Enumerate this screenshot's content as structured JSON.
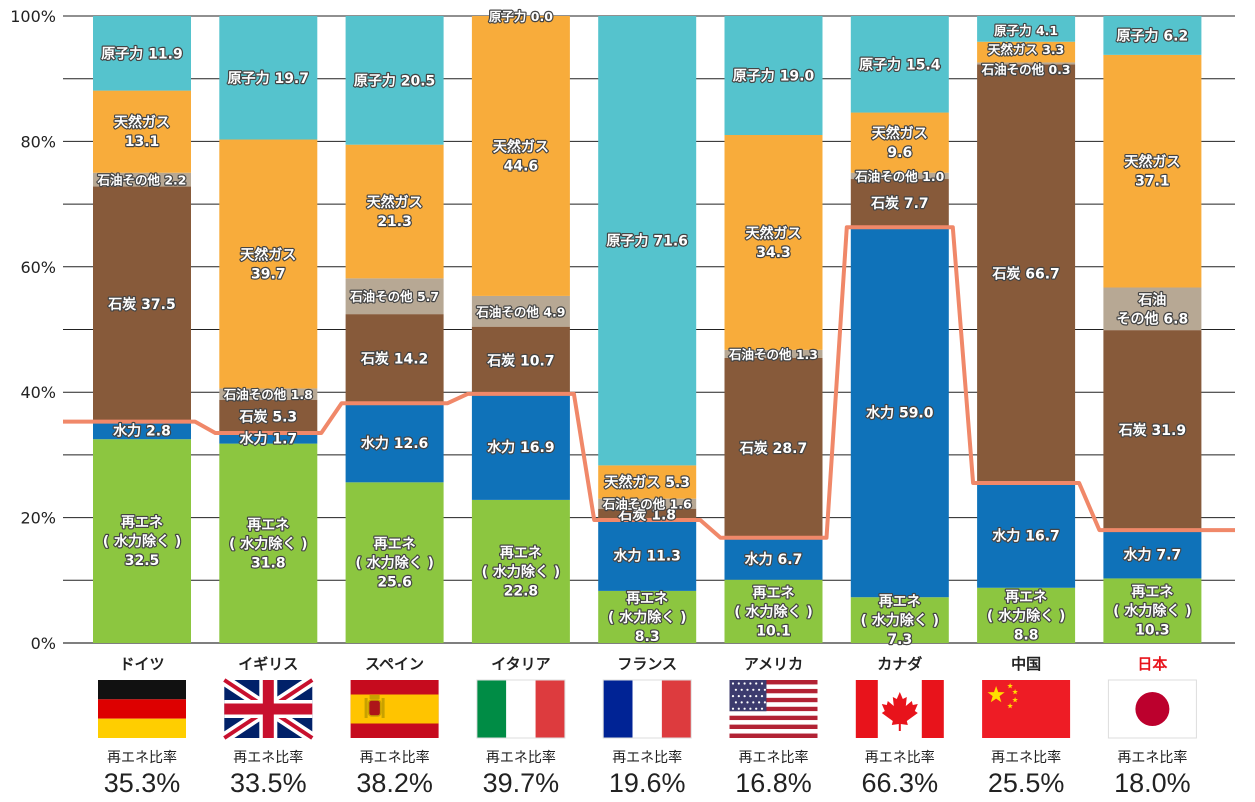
{
  "chart_data": {
    "type": "bar",
    "stacked": true,
    "ylim": [
      0,
      100
    ],
    "yticks": [
      "0%",
      "20%",
      "40%",
      "60%",
      "80%",
      "100%"
    ],
    "grid": true,
    "rate_caption": "再エネ比率",
    "highlight_color": "#e8131b",
    "series_colors": {
      "renew": "#8cc640",
      "hydro": "#0f72b9",
      "coal": "#875a3a",
      "oil": "#b7a894",
      "gas": "#f8ac3b",
      "nuclear": "#55c3cd",
      "line": "#f08869"
    },
    "countries": [
      {
        "name": "ドイツ",
        "flag": "germany-flag",
        "rate": "35.3%",
        "highlight": false,
        "segments": [
          {
            "key": "renew",
            "value": 32.5,
            "lines": [
              "再エネ",
              "( 水力除く )",
              "32.5"
            ]
          },
          {
            "key": "hydro",
            "value": 2.8,
            "lines": [
              "水力 2.8"
            ]
          },
          {
            "key": "coal",
            "value": 37.5,
            "lines": [
              "石炭 37.5"
            ]
          },
          {
            "key": "oil",
            "value": 2.2,
            "lines": [
              "石油その他 2.2"
            ],
            "small": true
          },
          {
            "key": "gas",
            "value": 13.1,
            "lines": [
              "天然ガス",
              "13.1"
            ]
          },
          {
            "key": "nuclear",
            "value": 11.9,
            "lines": [
              "原子力 11.9"
            ]
          }
        ]
      },
      {
        "name": "イギリス",
        "flag": "uk-flag",
        "rate": "33.5%",
        "highlight": false,
        "segments": [
          {
            "key": "renew",
            "value": 31.8,
            "lines": [
              "再エネ",
              "( 水力除く )",
              "31.8"
            ]
          },
          {
            "key": "hydro",
            "value": 1.7,
            "lines": [
              "水力 1.7"
            ]
          },
          {
            "key": "coal",
            "value": 5.3,
            "lines": [
              "石炭 5.3"
            ]
          },
          {
            "key": "oil",
            "value": 1.8,
            "lines": [
              "石油その他 1.8"
            ],
            "small": true
          },
          {
            "key": "gas",
            "value": 39.7,
            "lines": [
              "天然ガス",
              "39.7"
            ]
          },
          {
            "key": "nuclear",
            "value": 19.7,
            "lines": [
              "原子力 19.7"
            ]
          }
        ]
      },
      {
        "name": "スペイン",
        "flag": "spain-flag",
        "rate": "38.2%",
        "highlight": false,
        "segments": [
          {
            "key": "renew",
            "value": 25.6,
            "lines": [
              "再エネ",
              "( 水力除く )",
              "25.6"
            ]
          },
          {
            "key": "hydro",
            "value": 12.6,
            "lines": [
              "水力 12.6"
            ]
          },
          {
            "key": "coal",
            "value": 14.2,
            "lines": [
              "石炭 14.2"
            ]
          },
          {
            "key": "oil",
            "value": 5.7,
            "lines": [
              "石油その他 5.7"
            ],
            "small": true
          },
          {
            "key": "gas",
            "value": 21.3,
            "lines": [
              "天然ガス",
              "21.3"
            ]
          },
          {
            "key": "nuclear",
            "value": 20.5,
            "lines": [
              "原子力 20.5"
            ]
          }
        ]
      },
      {
        "name": "イタリア",
        "flag": "italy-flag",
        "rate": "39.7%",
        "highlight": false,
        "segments": [
          {
            "key": "renew",
            "value": 22.8,
            "lines": [
              "再エネ",
              "( 水力除く )",
              "22.8"
            ]
          },
          {
            "key": "hydro",
            "value": 16.9,
            "lines": [
              "水力 16.9"
            ]
          },
          {
            "key": "coal",
            "value": 10.7,
            "lines": [
              "石炭 10.7"
            ]
          },
          {
            "key": "oil",
            "value": 4.9,
            "lines": [
              "石油その他 4.9"
            ],
            "small": true
          },
          {
            "key": "gas",
            "value": 44.6,
            "lines": [
              "天然ガス",
              "44.6"
            ]
          },
          {
            "key": "nuclear",
            "value": 0.0,
            "lines": [
              "原子力 0.0"
            ],
            "small": true,
            "above": true
          }
        ]
      },
      {
        "name": "フランス",
        "flag": "france-flag",
        "rate": "19.6%",
        "highlight": false,
        "segments": [
          {
            "key": "renew",
            "value": 8.3,
            "lines": [
              "再エネ",
              "( 水力除く )",
              "8.3"
            ]
          },
          {
            "key": "hydro",
            "value": 11.3,
            "lines": [
              "水力 11.3"
            ]
          },
          {
            "key": "coal",
            "value": 1.8,
            "lines": [
              "石炭 1.8"
            ]
          },
          {
            "key": "oil",
            "value": 1.6,
            "lines": [
              "石油その他 1.6"
            ],
            "small": true
          },
          {
            "key": "gas",
            "value": 5.3,
            "lines": [
              "天然ガス 5.3"
            ]
          },
          {
            "key": "nuclear",
            "value": 71.6,
            "lines": [
              "原子力 71.6"
            ]
          }
        ]
      },
      {
        "name": "アメリカ",
        "flag": "usa-flag",
        "rate": "16.8%",
        "highlight": false,
        "segments": [
          {
            "key": "renew",
            "value": 10.1,
            "lines": [
              "再エネ",
              "( 水力除く )",
              "10.1"
            ]
          },
          {
            "key": "hydro",
            "value": 6.7,
            "lines": [
              "水力 6.7"
            ]
          },
          {
            "key": "coal",
            "value": 28.7,
            "lines": [
              "石炭 28.7"
            ]
          },
          {
            "key": "oil",
            "value": 1.3,
            "lines": [
              "石油その他 1.3"
            ],
            "small": true
          },
          {
            "key": "gas",
            "value": 34.3,
            "lines": [
              "天然ガス",
              "34.3"
            ]
          },
          {
            "key": "nuclear",
            "value": 19.0,
            "lines": [
              "原子力 19.0"
            ]
          }
        ]
      },
      {
        "name": "カナダ",
        "flag": "canada-flag",
        "rate": "66.3%",
        "highlight": false,
        "segments": [
          {
            "key": "renew",
            "value": 7.3,
            "lines": [
              "再エネ",
              "( 水力除く )",
              "7.3"
            ]
          },
          {
            "key": "hydro",
            "value": 59.0,
            "lines": [
              "水力 59.0"
            ]
          },
          {
            "key": "coal",
            "value": 7.7,
            "lines": [
              "石炭 7.7"
            ]
          },
          {
            "key": "oil",
            "value": 1.0,
            "lines": [
              "石油その他 1.0"
            ],
            "small": true
          },
          {
            "key": "gas",
            "value": 9.6,
            "lines": [
              "天然ガス",
              "9.6"
            ]
          },
          {
            "key": "nuclear",
            "value": 15.4,
            "lines": [
              "原子力 15.4"
            ]
          }
        ]
      },
      {
        "name": "中国",
        "flag": "china-flag",
        "rate": "25.5%",
        "highlight": false,
        "segments": [
          {
            "key": "renew",
            "value": 8.8,
            "lines": [
              "再エネ",
              "( 水力除く )",
              "8.8"
            ]
          },
          {
            "key": "hydro",
            "value": 16.7,
            "lines": [
              "水力 16.7"
            ]
          },
          {
            "key": "coal",
            "value": 66.7,
            "lines": [
              "石炭 66.7"
            ]
          },
          {
            "key": "oil",
            "value": 0.3,
            "lines": [
              "石油その他 0.3"
            ],
            "small": true
          },
          {
            "key": "gas",
            "value": 3.3,
            "lines": [
              "天然ガス 3.3"
            ],
            "small": true
          },
          {
            "key": "nuclear",
            "value": 4.1,
            "lines": [
              "原子力 4.1"
            ],
            "small": true
          }
        ]
      },
      {
        "name": "日本",
        "flag": "japan-flag",
        "rate": "18.0%",
        "highlight": true,
        "segments": [
          {
            "key": "renew",
            "value": 10.3,
            "lines": [
              "再エネ",
              "( 水力除く )",
              "10.3"
            ]
          },
          {
            "key": "hydro",
            "value": 7.7,
            "lines": [
              "水力 7.7"
            ]
          },
          {
            "key": "coal",
            "value": 31.9,
            "lines": [
              "石炭 31.9"
            ]
          },
          {
            "key": "oil",
            "value": 6.8,
            "lines": [
              "石油",
              "その他 6.8"
            ]
          },
          {
            "key": "gas",
            "value": 37.1,
            "lines": [
              "天然ガス",
              "37.1"
            ]
          },
          {
            "key": "nuclear",
            "value": 6.2,
            "lines": [
              "原子力 6.2"
            ]
          }
        ]
      }
    ]
  }
}
